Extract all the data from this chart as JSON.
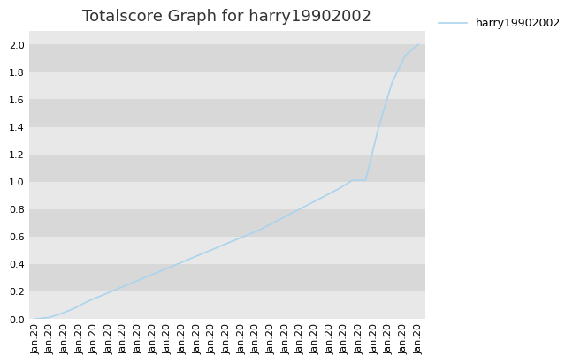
{
  "title": "Totalscore Graph for harry19902002",
  "legend_label": "harry19902002",
  "line_color": "#aad4ee",
  "background_color": "#e8e8e8",
  "figure_background": "#ffffff",
  "ylim": [
    0.0,
    2.1
  ],
  "yticks": [
    0.0,
    0.2,
    0.4,
    0.6,
    0.8,
    1.0,
    1.2,
    1.4,
    1.6,
    1.8,
    2.0
  ],
  "band_colors": [
    "#e8e8e8",
    "#d8d8d8"
  ],
  "y_values": [
    0.0,
    0.01,
    0.04,
    0.08,
    0.13,
    0.17,
    0.21,
    0.25,
    0.29,
    0.33,
    0.37,
    0.41,
    0.45,
    0.49,
    0.53,
    0.57,
    0.61,
    0.65,
    0.7,
    0.75,
    0.8,
    0.85,
    0.9,
    0.95,
    1.01,
    1.01,
    1.4,
    1.72,
    1.92,
    2.0
  ],
  "num_ticks": 27,
  "tick_label": "Jan.20",
  "xlabel_rotation": 90,
  "title_fontsize": 13,
  "legend_fontsize": 9,
  "tick_fontsize": 8,
  "linewidth": 1.2
}
